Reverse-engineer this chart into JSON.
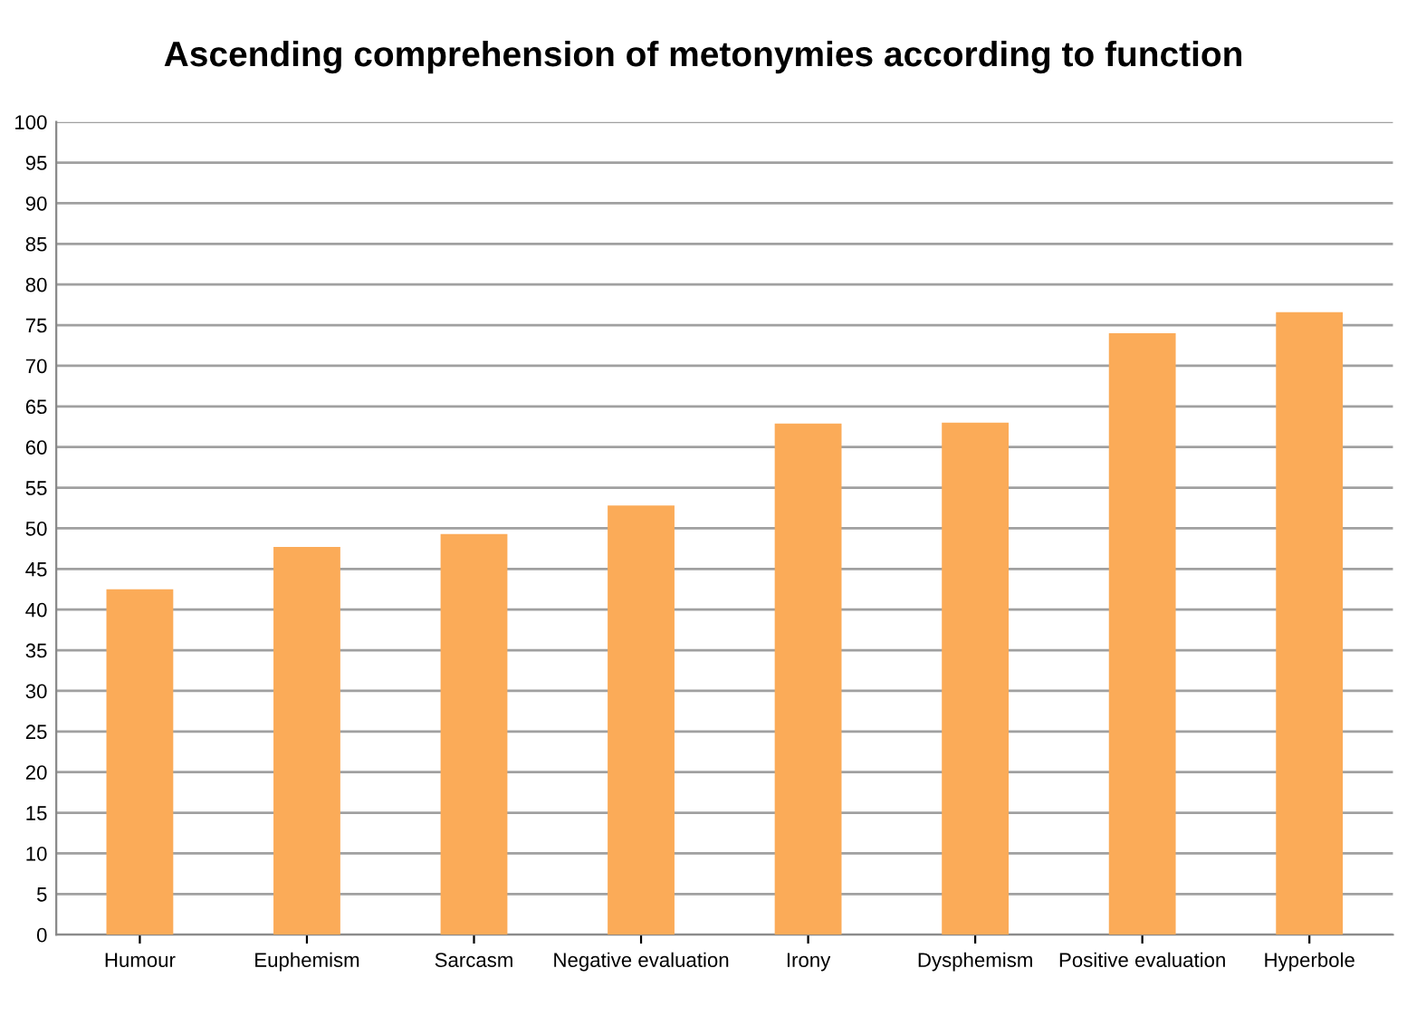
{
  "chart_data": {
    "type": "bar",
    "title": "Ascending comprehension of metonymies according to function",
    "categories": [
      "Humour",
      "Euphemism",
      "Sarcasm",
      "Negative evaluation",
      "Irony",
      "Dysphemism",
      "Positive evaluation",
      "Hyperbole"
    ],
    "values": [
      42.5,
      47.7,
      49.3,
      52.8,
      62.9,
      63.0,
      74.0,
      76.6
    ],
    "color": "#fbab58",
    "ylim": [
      0,
      100
    ],
    "yticks": [
      0,
      5,
      10,
      15,
      20,
      25,
      30,
      35,
      40,
      45,
      50,
      55,
      60,
      65,
      70,
      75,
      80,
      85,
      90,
      95,
      100
    ],
    "grid": "y"
  }
}
